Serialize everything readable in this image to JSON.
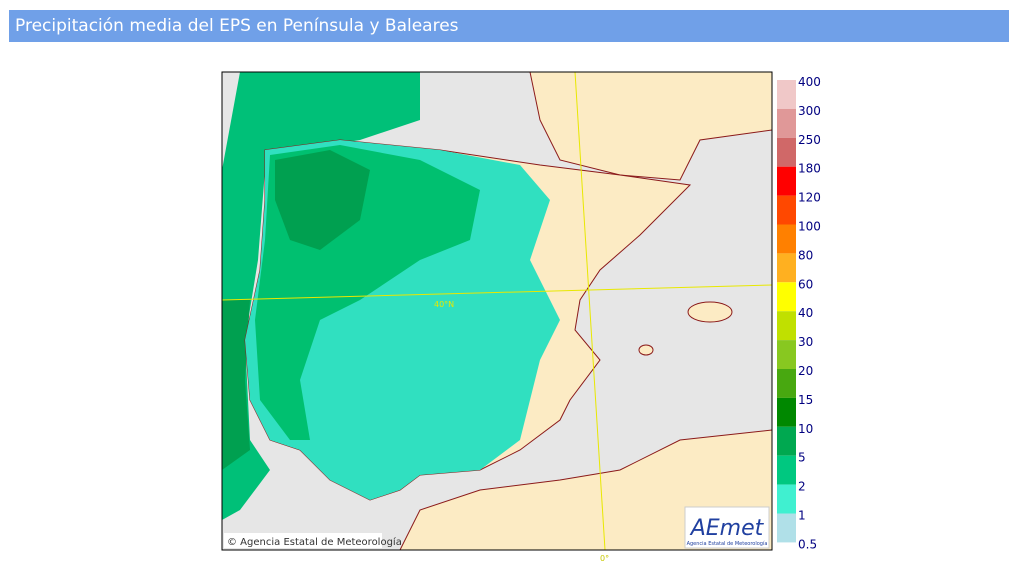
{
  "header": {
    "title": "Precipitación media del EPS en Península y Baleares"
  },
  "map": {
    "latitude_label": "40°N",
    "meridian_label": "0°",
    "credit": "© Agencia Estatal de Meteorología",
    "logo": {
      "name": "AEmet",
      "subtitle": "Agencia Estatal de Meteorología"
    }
  },
  "legend": {
    "labels": [
      400,
      300,
      250,
      180,
      120,
      100,
      80,
      60,
      40,
      30,
      20,
      15,
      10,
      5,
      2,
      1,
      0.5
    ],
    "colors": [
      "#f0c8c8",
      "#e09898",
      "#d06868",
      "#ff0000",
      "#ff4800",
      "#ff8000",
      "#ffb020",
      "#ffff00",
      "#c0e000",
      "#88c820",
      "#48a810",
      "#008800",
      "#00a850",
      "#00c880",
      "#40f0d0",
      "#b0e0e8"
    ]
  }
}
